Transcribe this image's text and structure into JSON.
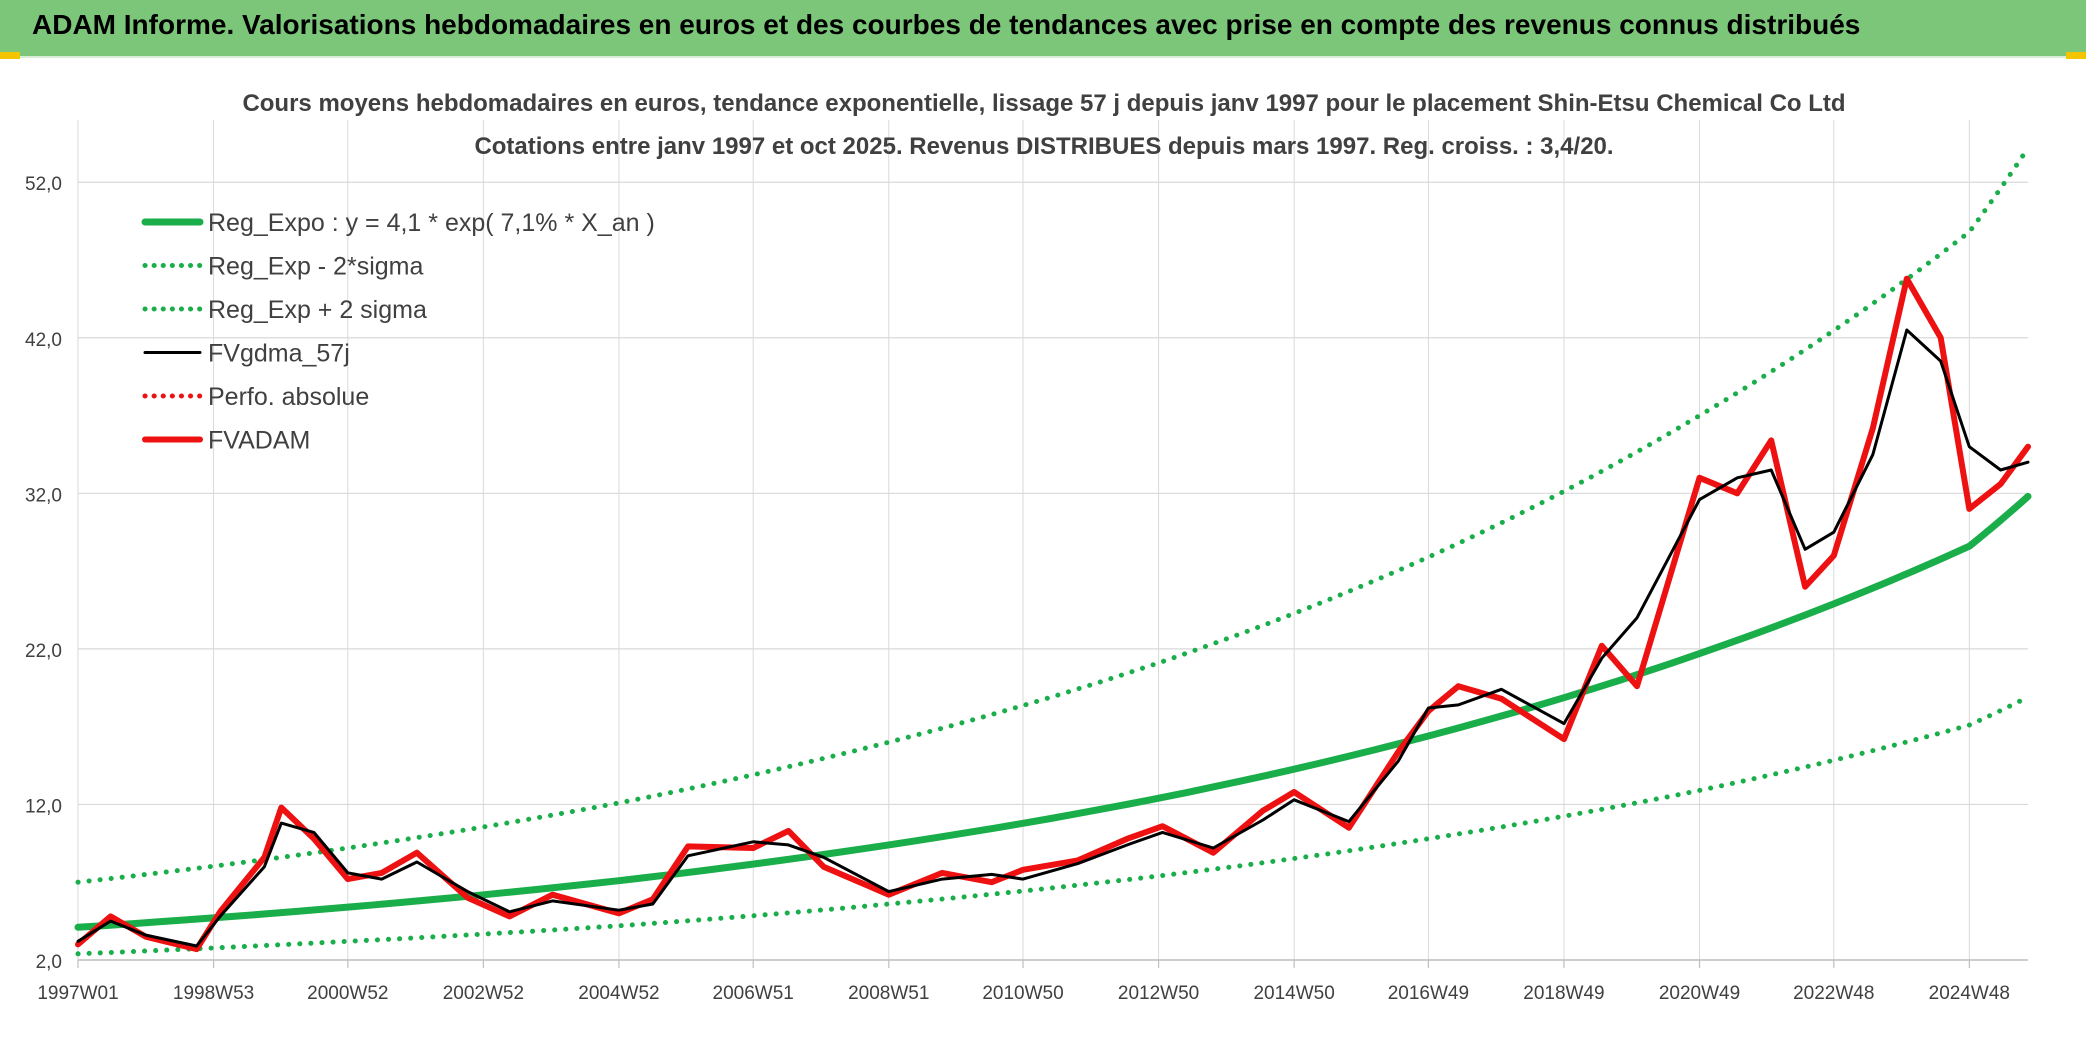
{
  "header": {
    "title": "ADAM Informe. Valorisations hebdomadaires en euros et des courbes de tendances avec prise en compte des revenus connus distribués"
  },
  "colors": {
    "header_bg": "#7cc67a",
    "green": "#1aae4b",
    "black": "#000000",
    "red": "#ee1111",
    "grid": "#d9d9d9",
    "text": "#404040"
  },
  "chart_data": {
    "type": "line",
    "title": "Cours moyens hebdomadaires en euros, tendance exponentielle, lissage 57 j depuis janv 1997 pour le placement Shin-Etsu Chemical Co Ltd",
    "subtitle": "Cotations entre janv 1997 et oct 2025. Revenus DISTRIBUES depuis mars 1997. Reg. croiss. : 3,4/20.",
    "xlabel": "",
    "ylabel": "",
    "x_range": [
      "1997W01",
      "2025W41"
    ],
    "x_ticks": [
      "1997W01",
      "1998W53",
      "2000W52",
      "2002W52",
      "2004W52",
      "2006W51",
      "2008W51",
      "2010W50",
      "2012W50",
      "2014W50",
      "2016W49",
      "2018W49",
      "2020W49",
      "2022W48",
      "2024W48"
    ],
    "ylim": [
      2,
      56
    ],
    "y_ticks": [
      "2,0",
      "12,0",
      "22,0",
      "32,0",
      "42,0",
      "52,0"
    ],
    "grid": true,
    "legend_position": "top-left",
    "series": [
      {
        "name": "Reg_Expo : y = 4,1 * exp( 7,1% *  X_an )",
        "style": "solid-thick",
        "color": "#1aae4b",
        "x": [
          "1997W01",
          "2000W52",
          "2004W52",
          "2008W51",
          "2012W50",
          "2016W49",
          "2020W49",
          "2024W48",
          "2025W41"
        ],
        "values": [
          4.1,
          5.4,
          7.1,
          9.4,
          12.4,
          16.4,
          21.7,
          28.6,
          31.8
        ]
      },
      {
        "name": "Reg_Exp - 2*sigma",
        "style": "dotted",
        "color": "#1aae4b",
        "x": [
          "1997W01",
          "2000W52",
          "2004W52",
          "2008W51",
          "2012W50",
          "2016W49",
          "2020W49",
          "2024W48",
          "2025W41"
        ],
        "values": [
          2.4,
          3.2,
          4.2,
          5.6,
          7.4,
          9.8,
          12.9,
          17.1,
          18.9
        ]
      },
      {
        "name": "Reg_Exp + 2 sigma",
        "style": "dotted",
        "color": "#1aae4b",
        "x": [
          "1997W01",
          "2000W52",
          "2004W52",
          "2008W51",
          "2012W50",
          "2016W49",
          "2020W49",
          "2024W48",
          "2025W41"
        ],
        "values": [
          7.0,
          9.2,
          12.1,
          16.0,
          21.1,
          27.9,
          37.0,
          48.8,
          54.2
        ]
      },
      {
        "name": "FVgdma_57j",
        "style": "solid-thin",
        "color": "#000000",
        "x": [
          "1997W01",
          "1997W26",
          "1998W01",
          "1998W40",
          "1999W06",
          "1999W40",
          "2000W01",
          "2000W26",
          "2000W52",
          "2001W26",
          "2002W01",
          "2002W40",
          "2003W20",
          "2004W01",
          "2004W52",
          "2005W26",
          "2006W01",
          "2006W51",
          "2007W26",
          "2008W01",
          "2008W51",
          "2009W40",
          "2010W26",
          "2010W50",
          "2011W40",
          "2012W26",
          "2013W01",
          "2013W40",
          "2014W26",
          "2014W50",
          "2015W40",
          "2016W26",
          "2016W49",
          "2017W20",
          "2018W01",
          "2018W49",
          "2019W26",
          "2020W01",
          "2020W49",
          "2021W26",
          "2021W52",
          "2022W26",
          "2022W48",
          "2023W26",
          "2023W52",
          "2024W26",
          "2024W48",
          "2025W20",
          "2025W41"
        ],
        "values": [
          3.2,
          4.5,
          3.6,
          2.9,
          4.8,
          8.0,
          10.8,
          10.2,
          7.6,
          7.2,
          8.3,
          6.4,
          5.1,
          5.8,
          5.2,
          5.6,
          8.7,
          9.6,
          9.4,
          8.6,
          6.4,
          7.2,
          7.5,
          7.2,
          8.2,
          9.4,
          10.2,
          9.2,
          11.0,
          12.3,
          10.9,
          14.8,
          18.2,
          18.4,
          19.4,
          17.2,
          21.4,
          24.0,
          31.6,
          33.0,
          33.5,
          28.4,
          29.5,
          34.5,
          42.5,
          40.5,
          35.0,
          33.5,
          34.0
        ]
      },
      {
        "name": "Perfo. absolue",
        "style": "dotted",
        "color": "#ee1111",
        "x": [],
        "values": []
      },
      {
        "name": "FVADAM",
        "style": "solid-thick",
        "color": "#ee1111",
        "x": [
          "1997W01",
          "1997W26",
          "1998W01",
          "1998W40",
          "1999W06",
          "1999W40",
          "2000W01",
          "2000W26",
          "2000W52",
          "2001W26",
          "2002W01",
          "2002W40",
          "2003W20",
          "2004W01",
          "2004W52",
          "2005W26",
          "2006W01",
          "2006W51",
          "2007W26",
          "2008W01",
          "2008W51",
          "2009W40",
          "2010W26",
          "2010W50",
          "2011W40",
          "2012W26",
          "2013W01",
          "2013W40",
          "2014W26",
          "2014W50",
          "2015W40",
          "2016W26",
          "2016W49",
          "2017W20",
          "2018W01",
          "2018W49",
          "2019W26",
          "2020W01",
          "2020W49",
          "2021W26",
          "2021W52",
          "2022W26",
          "2022W48",
          "2023W26",
          "2023W52",
          "2024W26",
          "2024W48",
          "2025W20",
          "2025W41"
        ],
        "values": [
          3.0,
          4.8,
          3.5,
          2.7,
          5.1,
          8.6,
          11.8,
          9.8,
          7.2,
          7.6,
          8.9,
          6.0,
          4.8,
          6.2,
          5.0,
          5.9,
          9.3,
          9.2,
          10.3,
          8.0,
          6.2,
          7.6,
          7.0,
          7.8,
          8.4,
          9.8,
          10.6,
          8.9,
          11.6,
          12.8,
          10.5,
          15.4,
          18.0,
          19.6,
          18.8,
          16.2,
          22.2,
          19.6,
          33.0,
          32.0,
          35.4,
          26.0,
          28.0,
          36.2,
          45.8,
          42.0,
          31.0,
          32.6,
          35.0
        ]
      }
    ]
  }
}
